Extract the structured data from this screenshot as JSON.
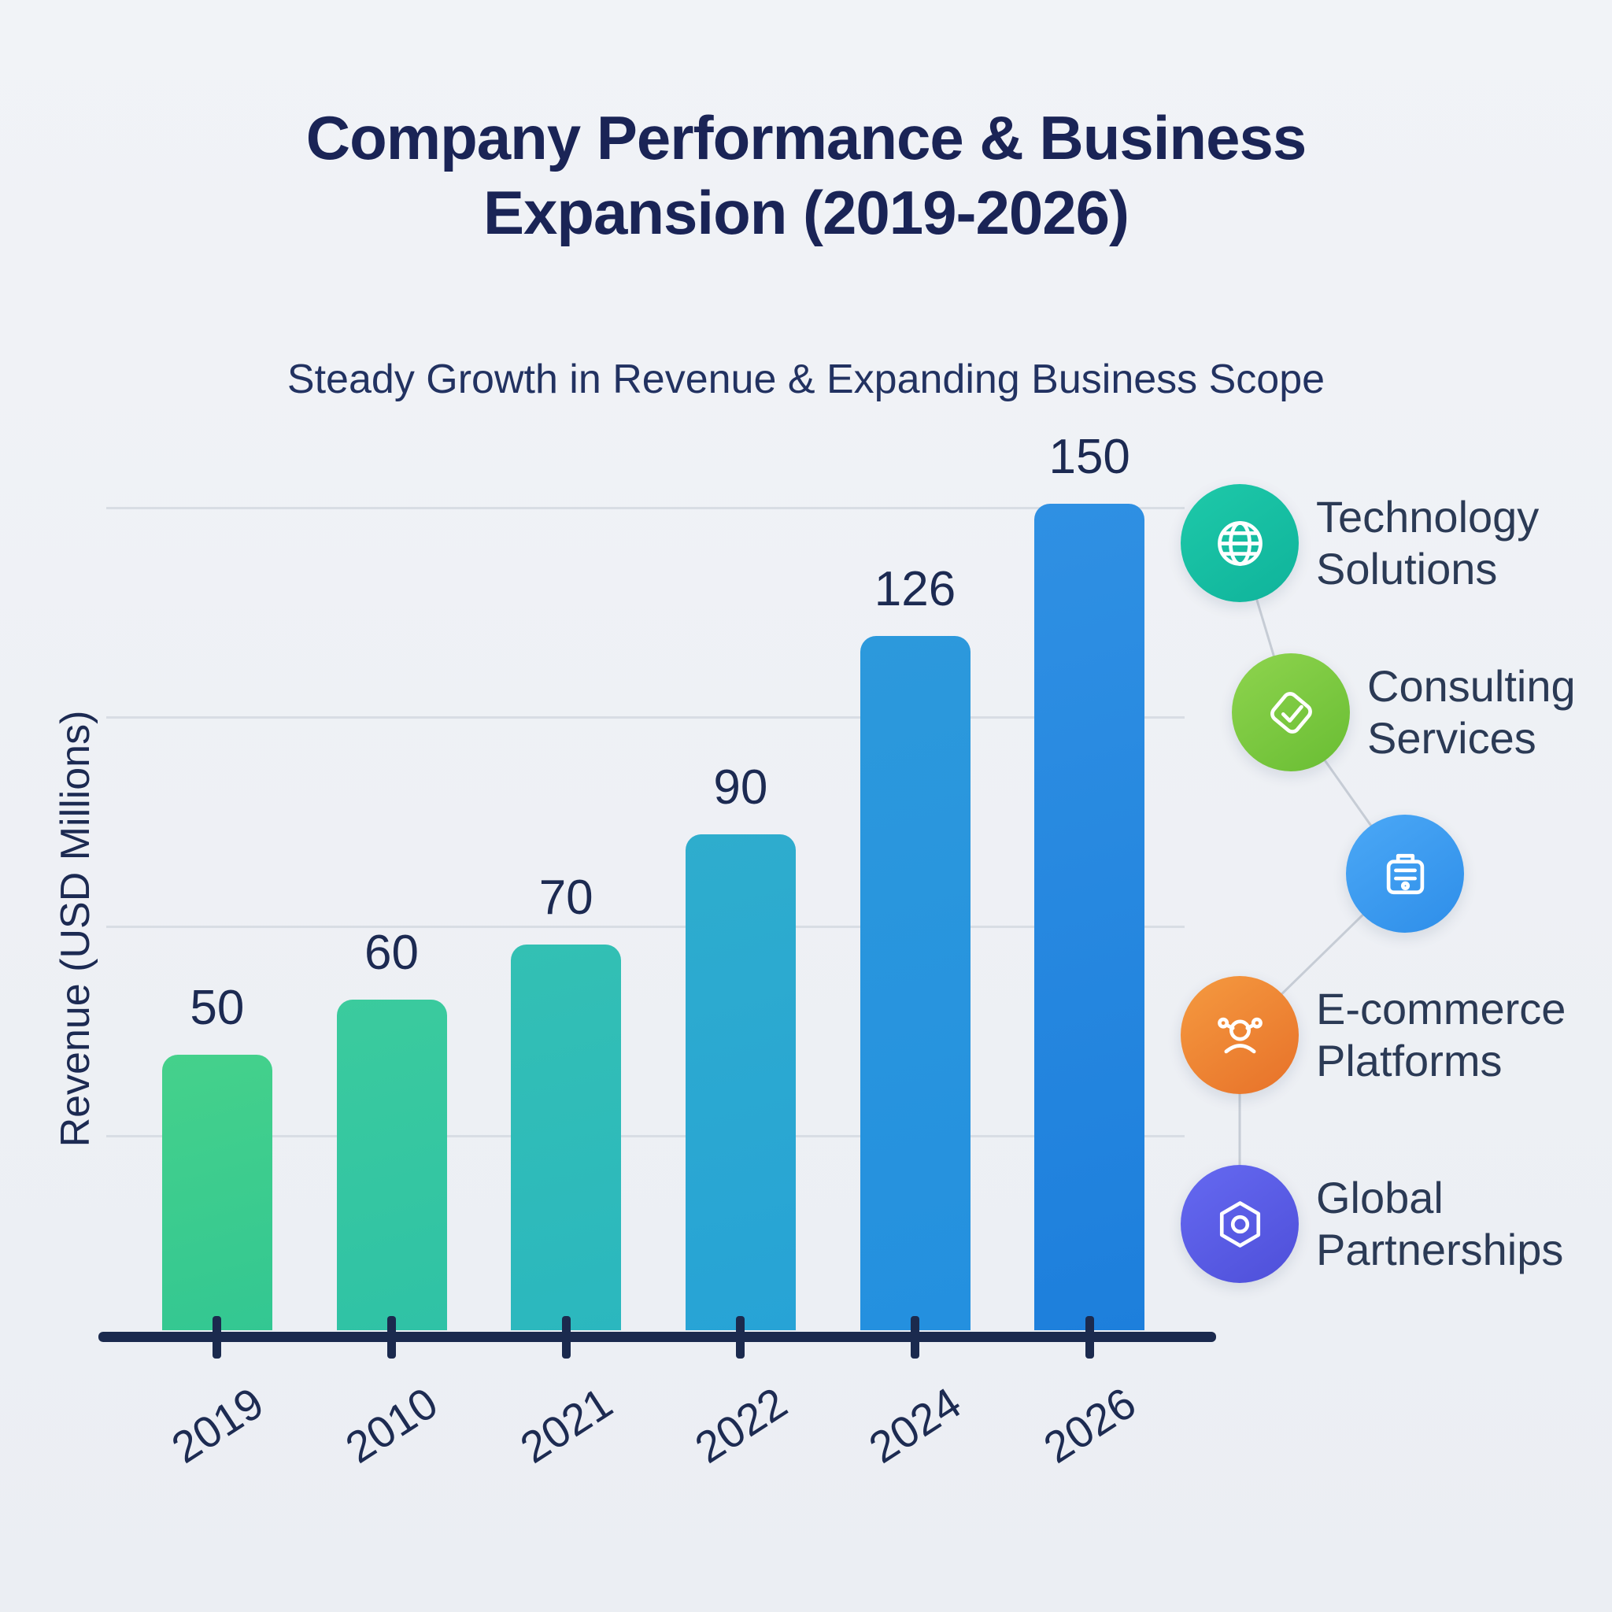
{
  "title": "Company Performance & Business Expansion (2019-2026)",
  "subtitle": "Steady Growth in Revenue & Expanding Business Scope",
  "chart_data": {
    "type": "bar",
    "title": "Company Performance & Business Expansion (2019-2026)",
    "subtitle": "Steady Growth in Revenue & Expanding Business Scope",
    "categories": [
      "2019",
      "2010",
      "2021",
      "2022",
      "2024",
      "2026"
    ],
    "values": [
      50,
      60,
      70,
      90,
      126,
      150
    ],
    "xlabel": "",
    "ylabel": "Revenue (USD Millions)",
    "ylim": [
      0,
      150
    ],
    "grid": true,
    "gridline_values": [
      35,
      73,
      111,
      149
    ],
    "legend_position": "right",
    "bar_gradients": [
      [
        "#45d18b",
        "#33c792"
      ],
      [
        "#3bcb9d",
        "#2fc2a6"
      ],
      [
        "#33c0b3",
        "#2bb7bf"
      ],
      [
        "#2eadcd",
        "#27a3d6"
      ],
      [
        "#2c99dc",
        "#2490df"
      ],
      [
        "#2f90e3",
        "#1d7fdc"
      ]
    ],
    "axis_color": "#1b2a4e",
    "label_color": "#1d2b52"
  },
  "legend": {
    "items": [
      {
        "label": "Technology Solutions",
        "icon": "globe-icon",
        "colors": [
          "#1ec9a9",
          "#0fb39b"
        ]
      },
      {
        "label": "Consulting Services",
        "icon": "check-badge-icon",
        "colors": [
          "#8ed44e",
          "#69bd33"
        ]
      },
      {
        "label": "",
        "icon": "briefcase-icon",
        "colors": [
          "#4ba8f6",
          "#2e8ee9"
        ]
      },
      {
        "label": "E-commerce Platforms",
        "icon": "network-icon",
        "colors": [
          "#f59a40",
          "#e77129"
        ]
      },
      {
        "label": "Global Partnerships",
        "icon": "hexagon-icon",
        "colors": [
          "#6569f1",
          "#4e4fd9"
        ]
      }
    ]
  }
}
